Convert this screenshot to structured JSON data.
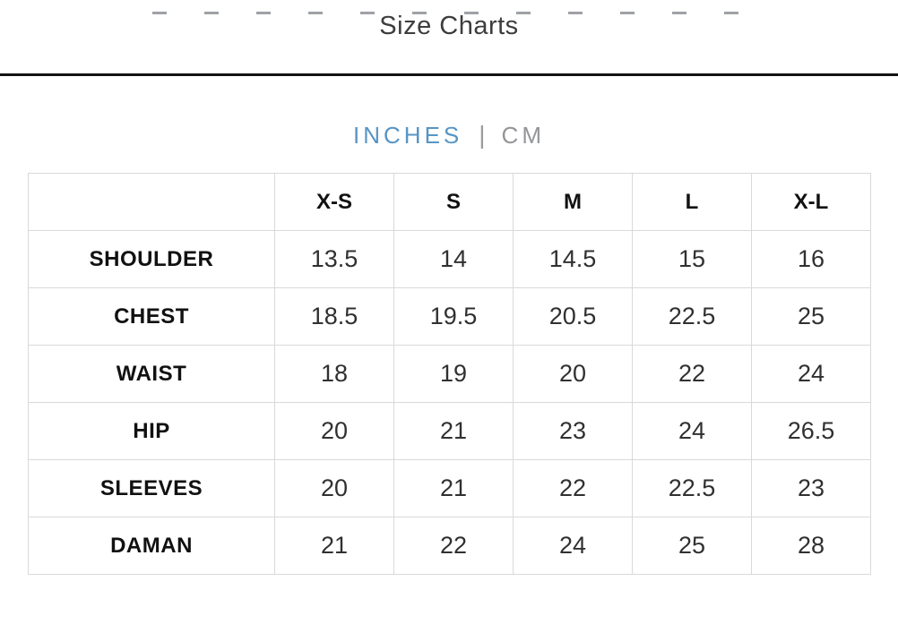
{
  "page": {
    "title": "Size Charts"
  },
  "unit_toggle": {
    "active_option": "INCHES",
    "inches_label": "INCHES",
    "separator": "|",
    "cm_label": "CM"
  },
  "colors": {
    "accent_blue": "#5795c5",
    "inactive_gray": "#939598",
    "divider_dark": "#141414",
    "table_border": "#d9d9d9",
    "title_text": "#3d3d3d",
    "label_text": "#111111",
    "value_text": "#303030"
  },
  "size_table": {
    "columns": [
      "",
      "X-S",
      "S",
      "M",
      "L",
      "X-L"
    ],
    "rows": [
      {
        "label": "SHOULDER",
        "values": [
          "13.5",
          "14",
          "14.5",
          "15",
          "16"
        ]
      },
      {
        "label": "CHEST",
        "values": [
          "18.5",
          "19.5",
          "20.5",
          "22.5",
          "25"
        ]
      },
      {
        "label": "WAIST",
        "values": [
          "18",
          "19",
          "20",
          "22",
          "24"
        ]
      },
      {
        "label": "HIP",
        "values": [
          "20",
          "21",
          "23",
          "24",
          "26.5"
        ]
      },
      {
        "label": "SLEEVES",
        "values": [
          "20",
          "21",
          "22",
          "22.5",
          "23"
        ]
      },
      {
        "label": "DAMAN",
        "values": [
          "21",
          "22",
          "24",
          "25",
          "28"
        ]
      }
    ]
  }
}
